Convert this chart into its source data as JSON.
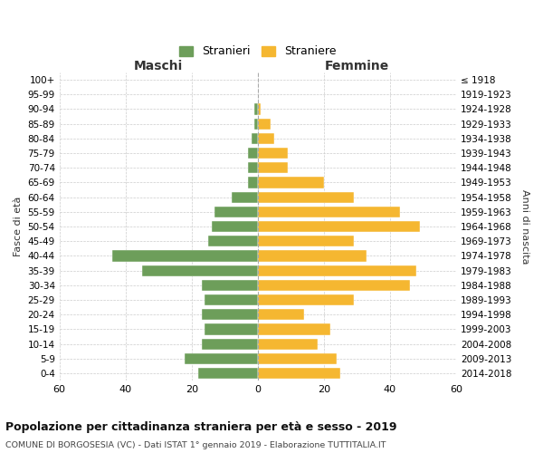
{
  "age_groups": [
    "0-4",
    "5-9",
    "10-14",
    "15-19",
    "20-24",
    "25-29",
    "30-34",
    "35-39",
    "40-44",
    "45-49",
    "50-54",
    "55-59",
    "60-64",
    "65-69",
    "70-74",
    "75-79",
    "80-84",
    "85-89",
    "90-94",
    "95-99",
    "100+"
  ],
  "birth_years": [
    "2014-2018",
    "2009-2013",
    "2004-2008",
    "1999-2003",
    "1994-1998",
    "1989-1993",
    "1984-1988",
    "1979-1983",
    "1974-1978",
    "1969-1973",
    "1964-1968",
    "1959-1963",
    "1954-1958",
    "1949-1953",
    "1944-1948",
    "1939-1943",
    "1934-1938",
    "1929-1933",
    "1924-1928",
    "1919-1923",
    "≤ 1918"
  ],
  "maschi": [
    18,
    22,
    17,
    16,
    17,
    16,
    17,
    35,
    44,
    15,
    14,
    13,
    8,
    3,
    3,
    3,
    2,
    1,
    1,
    0,
    0
  ],
  "femmine": [
    25,
    24,
    18,
    22,
    14,
    29,
    46,
    48,
    33,
    29,
    49,
    43,
    29,
    20,
    9,
    9,
    5,
    4,
    1,
    0,
    0
  ],
  "color_maschi": "#6d9e5a",
  "color_femmine": "#f5b731",
  "title": "Popolazione per cittadinanza straniera per età e sesso - 2019",
  "subtitle": "COMUNE DI BORGOSESIA (VC) - Dati ISTAT 1° gennaio 2019 - Elaborazione TUTTITALIA.IT",
  "xlabel_left": "Maschi",
  "xlabel_right": "Femmine",
  "ylabel_left": "Fasce di età",
  "ylabel_right": "Anni di nascita",
  "legend_maschi": "Stranieri",
  "legend_femmine": "Straniere",
  "xlim": 60,
  "background_color": "#ffffff",
  "grid_color": "#cccccc"
}
